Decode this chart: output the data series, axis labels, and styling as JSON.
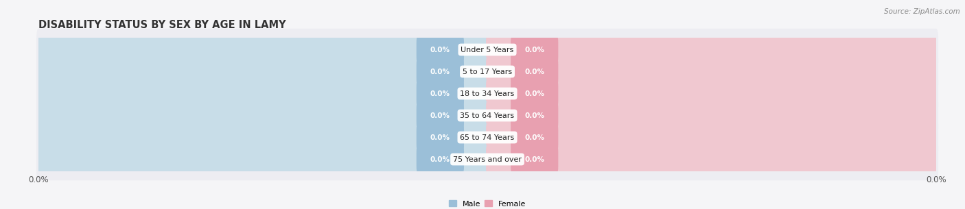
{
  "title": "DISABILITY STATUS BY SEX BY AGE IN LAMY",
  "source": "Source: ZipAtlas.com",
  "categories": [
    "Under 5 Years",
    "5 to 17 Years",
    "18 to 34 Years",
    "35 to 64 Years",
    "65 to 74 Years",
    "75 Years and over"
  ],
  "male_values": [
    0.0,
    0.0,
    0.0,
    0.0,
    0.0,
    0.0
  ],
  "female_values": [
    0.0,
    0.0,
    0.0,
    0.0,
    0.0,
    0.0
  ],
  "male_color": "#9bbfd8",
  "female_color": "#e8a0b0",
  "male_bar_color": "#c8dde8",
  "female_bar_color": "#f0c8d0",
  "row_bg_even": "#ededf2",
  "row_bg_odd": "#e5e5ec",
  "fig_bg": "#f5f5f7",
  "bar_height": 0.72,
  "title_fontsize": 10.5,
  "label_fontsize": 8.0,
  "value_fontsize": 7.5,
  "tick_fontsize": 8.5,
  "source_fontsize": 7.5
}
